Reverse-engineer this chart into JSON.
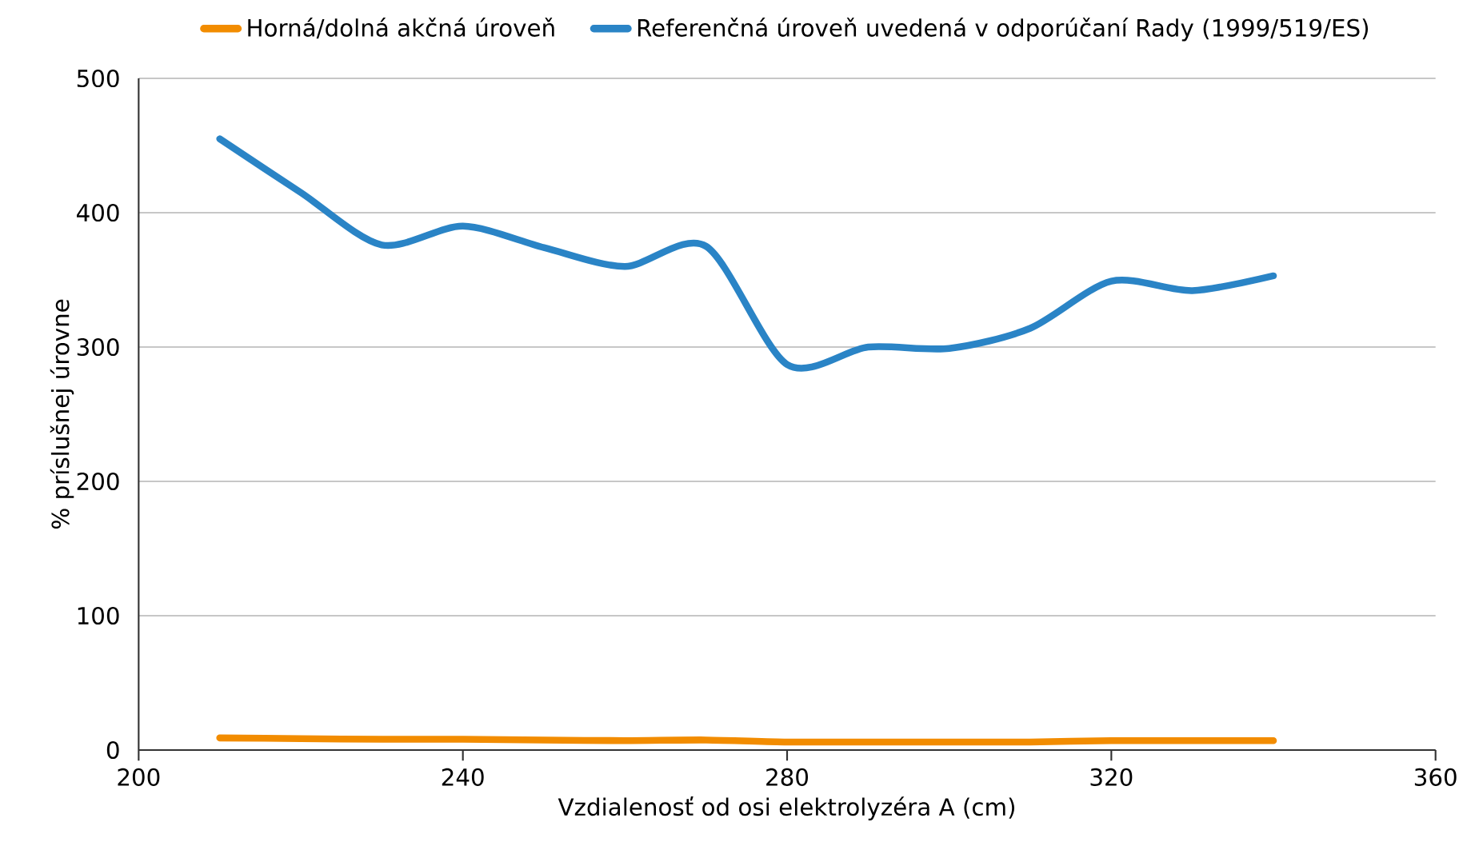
{
  "chart_data": {
    "type": "line",
    "xlabel": "Vzdialenosť od osi elektrolyzéra A (cm)",
    "ylabel": "% príslušnej úrovne",
    "x": [
      210,
      220,
      230,
      240,
      250,
      260,
      270,
      280,
      290,
      300,
      310,
      320,
      330,
      340
    ],
    "series": [
      {
        "name": "Horná/dolná akčná úroveň",
        "color": "#f28c00",
        "values": [
          9,
          8.5,
          8,
          8,
          7.5,
          7,
          7.5,
          6,
          6,
          6,
          6,
          7,
          7,
          7
        ]
      },
      {
        "name": "Referenčná úroveň uvedená v odporúčaní Rady (1999/519/ES)",
        "color": "#2a84c6",
        "values": [
          455,
          415,
          376,
          390,
          374,
          360,
          375,
          287,
          300,
          299,
          314,
          349,
          342,
          353
        ]
      }
    ],
    "xlim": [
      200,
      360
    ],
    "ylim": [
      0,
      500
    ],
    "xticks": [
      200,
      240,
      280,
      320,
      360
    ],
    "yticks": [
      0,
      100,
      200,
      300,
      400,
      500
    ],
    "grid": "y",
    "legend": "top",
    "marker": "none"
  }
}
